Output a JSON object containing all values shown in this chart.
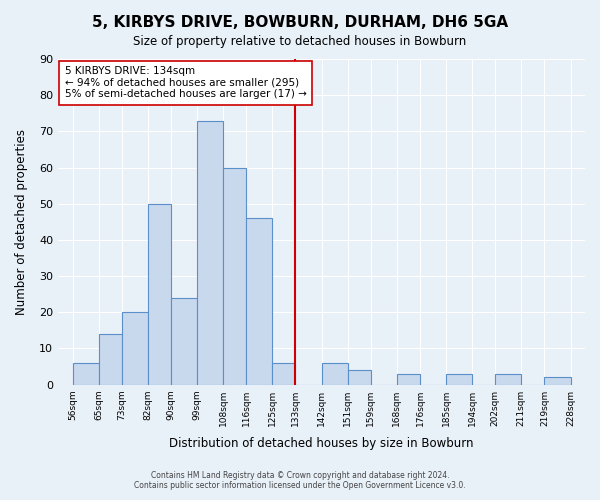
{
  "title": "5, KIRBYS DRIVE, BOWBURN, DURHAM, DH6 5GA",
  "subtitle": "Size of property relative to detached houses in Bowburn",
  "xlabel": "Distribution of detached houses by size in Bowburn",
  "ylabel": "Number of detached properties",
  "bar_left_edges": [
    56,
    65,
    73,
    82,
    90,
    99,
    108,
    116,
    125,
    133,
    142,
    151,
    159,
    168,
    176,
    185,
    194,
    202,
    211,
    219
  ],
  "bar_heights": [
    6,
    14,
    20,
    50,
    24,
    73,
    60,
    46,
    6,
    0,
    6,
    4,
    0,
    3,
    0,
    3,
    0,
    3,
    0,
    2
  ],
  "bar_widths": [
    9,
    8,
    9,
    8,
    9,
    9,
    8,
    9,
    8,
    9,
    9,
    8,
    9,
    8,
    9,
    9,
    8,
    9,
    8,
    9
  ],
  "tick_labels": [
    "56sqm",
    "65sqm",
    "73sqm",
    "82sqm",
    "90sqm",
    "99sqm",
    "108sqm",
    "116sqm",
    "125sqm",
    "133sqm",
    "142sqm",
    "151sqm",
    "159sqm",
    "168sqm",
    "176sqm",
    "185sqm",
    "194sqm",
    "202sqm",
    "211sqm",
    "219sqm",
    "228sqm"
  ],
  "tick_positions": [
    56,
    65,
    73,
    82,
    90,
    99,
    108,
    116,
    125,
    133,
    142,
    151,
    159,
    168,
    176,
    185,
    194,
    202,
    211,
    219,
    228
  ],
  "bar_color": "#c8d9ee",
  "bar_edge_color": "#5b8fc9",
  "vline_x": 133,
  "vline_color": "#cc0000",
  "annotation_title": "5 KIRBYS DRIVE: 134sqm",
  "annotation_line1": "← 94% of detached houses are smaller (295)",
  "annotation_line2": "5% of semi-detached houses are larger (17) →",
  "annotation_box_color": "#ffffff",
  "annotation_box_edge": "#cc0000",
  "ylim": [
    0,
    90
  ],
  "xlim": [
    51,
    233
  ],
  "footer_line1": "Contains HM Land Registry data © Crown copyright and database right 2024.",
  "footer_line2": "Contains public sector information licensed under the Open Government Licence v3.0.",
  "bg_color": "#e8f0f8",
  "plot_bg_color": "#e8f0f8"
}
